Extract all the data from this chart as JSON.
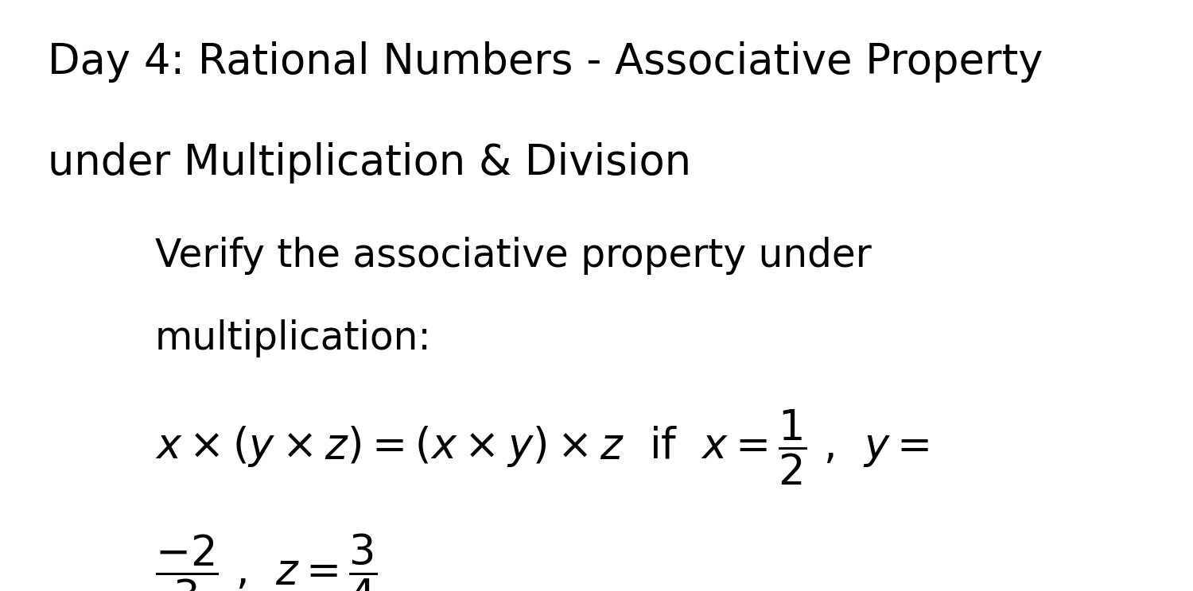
{
  "background_color": "#ffffff",
  "title_line1": "Day 4: Rational Numbers - Associative Property",
  "title_line2": "under Multiplication & Division",
  "subtitle_line1": "Verify the associative property under",
  "subtitle_line2": "multiplication:",
  "title_fontsize": 38,
  "subtitle_fontsize": 35,
  "math_fontsize": 38,
  "text_color": "#000000"
}
